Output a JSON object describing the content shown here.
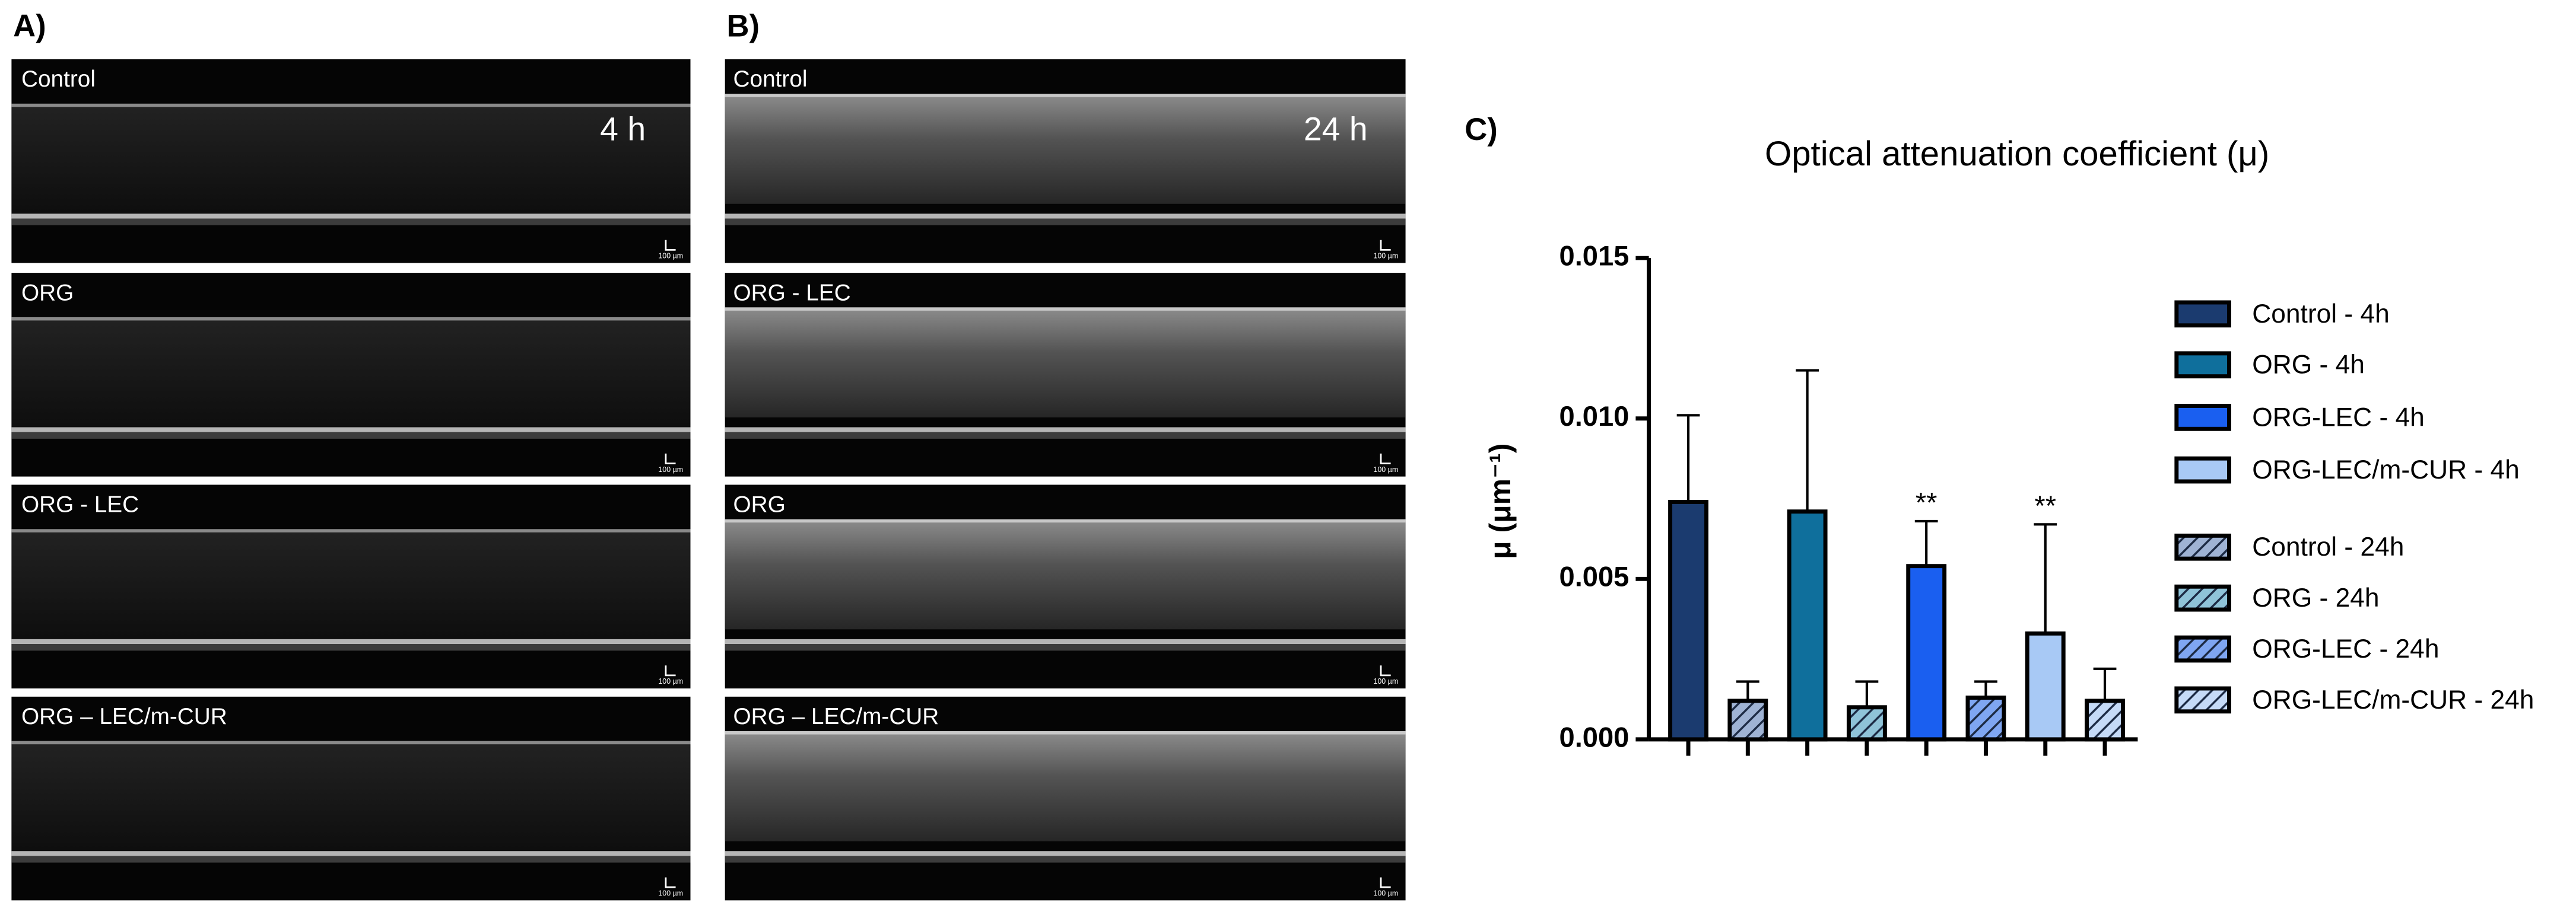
{
  "panel_a": {
    "label": "A)",
    "time": "4 h",
    "images": [
      {
        "name": "Control",
        "scale": "100 µm"
      },
      {
        "name": "ORG",
        "scale": "100 µm"
      },
      {
        "name": "ORG - LEC",
        "scale": "100 µm"
      },
      {
        "name": "ORG – LEC/m-CUR",
        "scale": "100 µm"
      }
    ]
  },
  "panel_b": {
    "label": "B)",
    "time": "24 h",
    "images": [
      {
        "name": "Control",
        "scale": "100 µm"
      },
      {
        "name": "ORG - LEC",
        "scale": "100 µm"
      },
      {
        "name": "ORG",
        "scale": "100 µm"
      },
      {
        "name": "ORG – LEC/m-CUR",
        "scale": "100 µm"
      }
    ]
  },
  "chart_data": {
    "type": "bar",
    "panel_label": "C)",
    "title": "Optical attenuation coefficient (μ)",
    "y_label": "μ (μm⁻¹)",
    "categories": [
      null,
      null,
      null,
      null,
      null,
      null,
      null,
      null
    ],
    "ylim": [
      0,
      0.015
    ],
    "yticks": [
      {
        "value": 0,
        "label": "0.000"
      },
      {
        "value": 0.005,
        "label": "0.005"
      },
      {
        "value": 0.01,
        "label": "0.010"
      },
      {
        "value": 0.015,
        "label": "0.015"
      }
    ],
    "series": [
      {
        "name": "Control - 4h",
        "color": "#1b3b6f",
        "hatch": false,
        "values": [
          0.0074,
          null,
          null,
          null,
          null,
          null,
          null,
          null
        ],
        "errors": [
          0.0027,
          null,
          null,
          null,
          null,
          null,
          null,
          null
        ]
      },
      {
        "name": "ORG - 4h",
        "color": "#0f6f9c",
        "hatch": false,
        "values": [
          null,
          null,
          0.0071,
          null,
          null,
          null,
          null,
          null
        ],
        "errors": [
          null,
          null,
          0.0044,
          null,
          null,
          null,
          null,
          null
        ]
      },
      {
        "name": "ORG-LEC - 4h",
        "color": "#1a5ff0",
        "hatch": false,
        "significance": "**",
        "values": [
          null,
          null,
          null,
          null,
          0.0054,
          null,
          null,
          null
        ],
        "errors": [
          null,
          null,
          null,
          null,
          0.0014,
          null,
          null,
          null
        ]
      },
      {
        "name": "ORG-LEC/m-CUR - 4h",
        "color": "#a8c9f5",
        "hatch": false,
        "significance": "**",
        "values": [
          null,
          null,
          null,
          null,
          null,
          null,
          0.0033,
          null
        ],
        "errors": [
          null,
          null,
          null,
          null,
          null,
          null,
          0.0034,
          null
        ]
      },
      {
        "name": "Control - 24h",
        "color": "#9fb3d4",
        "hatch": true,
        "values": [
          null,
          0.0012,
          null,
          null,
          null,
          null,
          null,
          null
        ],
        "errors": [
          null,
          0.0006,
          null,
          null,
          null,
          null,
          null,
          null
        ]
      },
      {
        "name": "ORG - 24h",
        "color": "#8fc3d8",
        "hatch": true,
        "values": [
          null,
          null,
          null,
          0.001,
          null,
          null,
          null,
          null
        ],
        "errors": [
          null,
          null,
          null,
          0.0008,
          null,
          null,
          null,
          null
        ]
      },
      {
        "name": "ORG-LEC - 24h",
        "color": "#7fa6f2",
        "hatch": true,
        "values": [
          null,
          null,
          null,
          null,
          null,
          0.0013,
          null,
          null
        ],
        "errors": [
          null,
          null,
          null,
          null,
          null,
          0.0005,
          null,
          null
        ]
      },
      {
        "name": "ORG-LEC/m-CUR - 24h",
        "color": "#c5daf7",
        "hatch": true,
        "values": [
          null,
          null,
          null,
          null,
          null,
          null,
          null,
          0.0012
        ],
        "errors": [
          null,
          null,
          null,
          null,
          null,
          null,
          null,
          0.001
        ]
      }
    ]
  }
}
